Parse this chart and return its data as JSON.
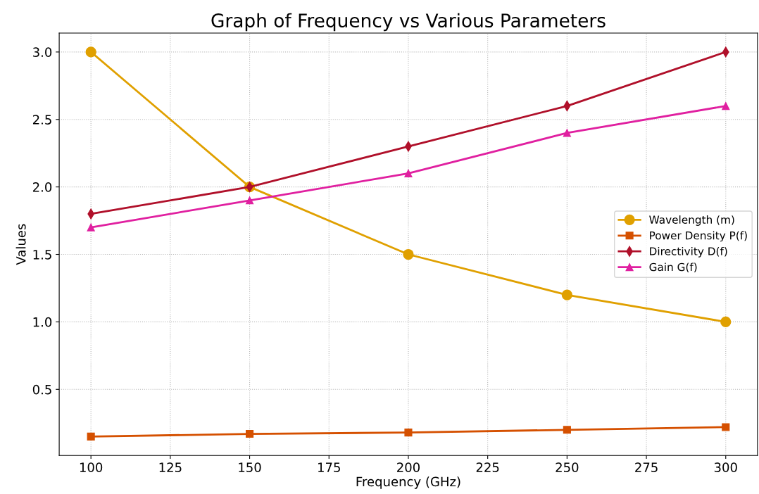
{
  "chart_data": {
    "type": "line",
    "title": "Graph of Frequency vs Various Parameters",
    "xlabel": "Frequency (GHz)",
    "ylabel": "Values",
    "x": [
      100,
      150,
      200,
      250,
      300
    ],
    "series": [
      {
        "name": "Wavelength (m)",
        "color": "#e0a000",
        "marker": "circle",
        "values": [
          3.0,
          2.0,
          1.5,
          1.2,
          1.0
        ]
      },
      {
        "name": "Power Density P(f)",
        "color": "#d55000",
        "marker": "square",
        "values": [
          0.15,
          0.17,
          0.18,
          0.2,
          0.22
        ]
      },
      {
        "name": "Directivity D(f)",
        "color": "#b0102a",
        "marker": "diamond",
        "values": [
          1.8,
          2.0,
          2.3,
          2.6,
          3.0
        ]
      },
      {
        "name": "Gain G(f)",
        "color": "#e020a0",
        "marker": "triangle",
        "values": [
          1.7,
          1.9,
          2.1,
          2.4,
          2.6
        ]
      }
    ],
    "xlim": [
      90,
      310
    ],
    "ylim": [
      0.01,
      3.14
    ],
    "xticks": [
      100,
      125,
      150,
      175,
      200,
      225,
      250,
      275,
      300
    ],
    "yticks": [
      {
        "value": 0.5,
        "label": "0.5"
      },
      {
        "value": 1.0,
        "label": "1.0"
      },
      {
        "value": 1.5,
        "label": "1.5"
      },
      {
        "value": 2.0,
        "label": "2.0"
      },
      {
        "value": 2.5,
        "label": "2.5"
      },
      {
        "value": 3.0,
        "label": "3.0"
      }
    ],
    "grid": true,
    "line_style": "solid",
    "legend": "center right"
  }
}
